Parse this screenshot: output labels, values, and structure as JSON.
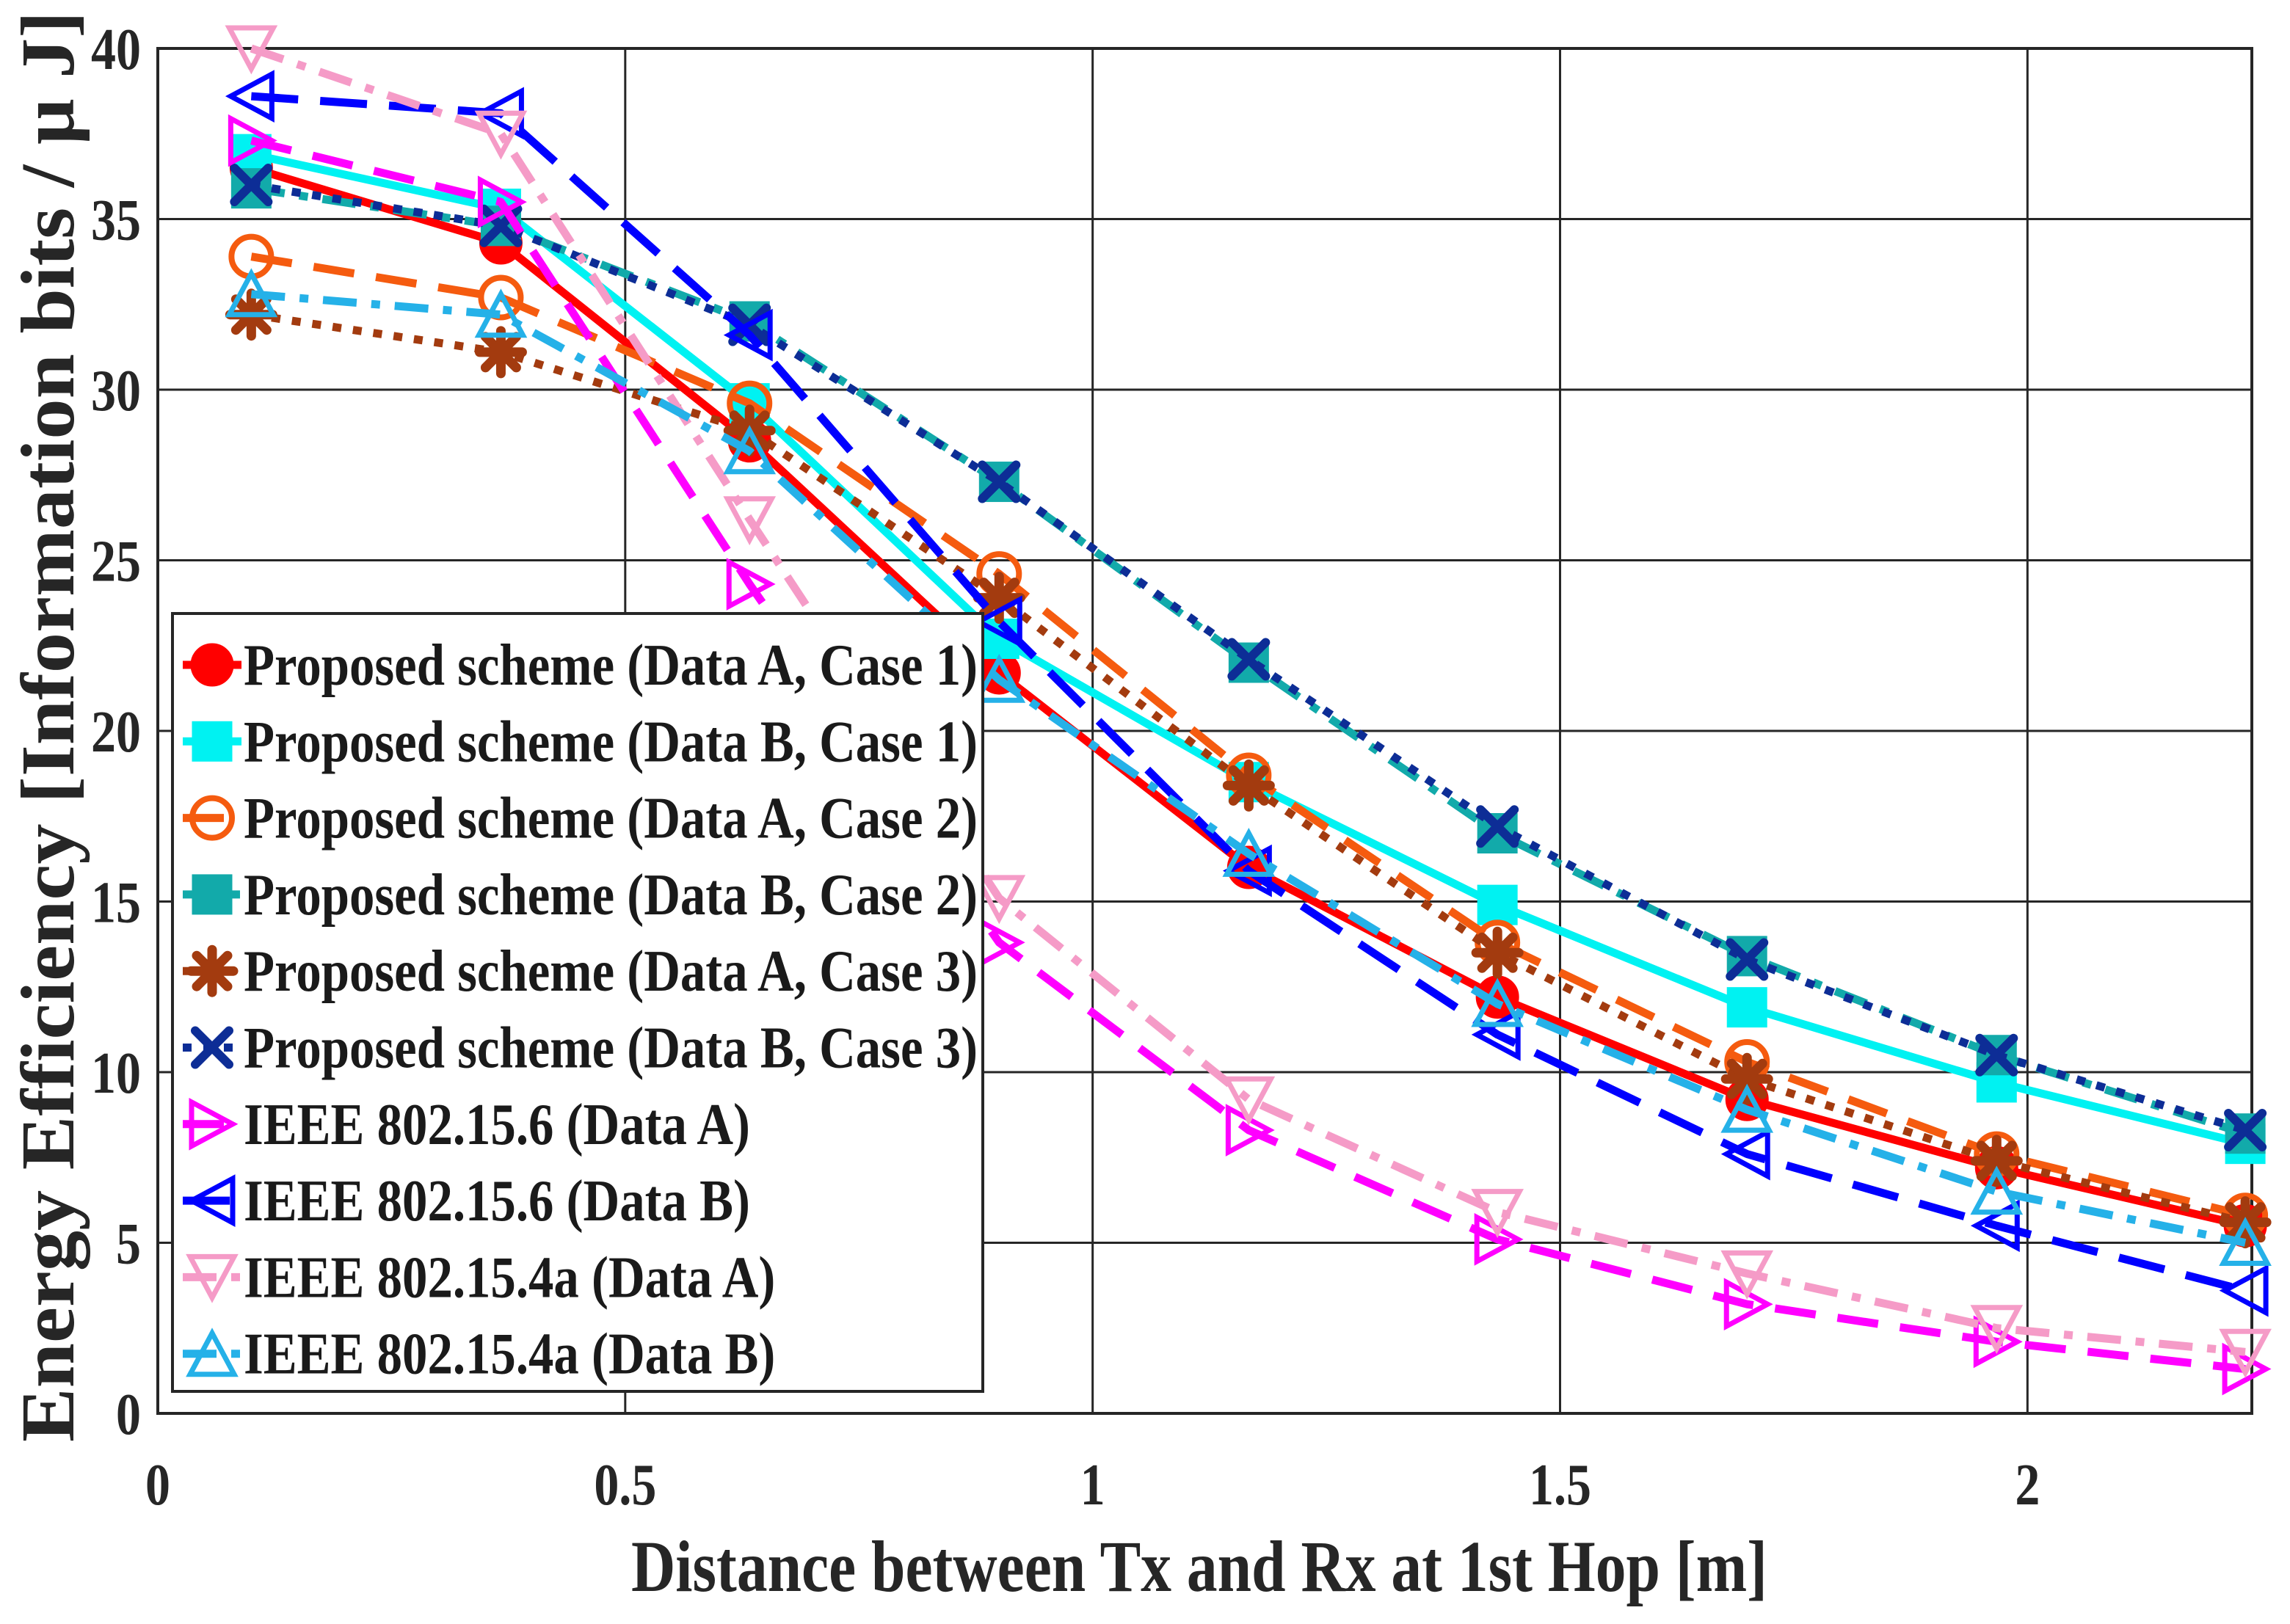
{
  "chart_data": {
    "type": "line",
    "xlabel": "Distance between Tx and Rx at 1st Hop [m]",
    "ylabel": "Energy Efficiency [Information bits / μ J]",
    "xlim": [
      0,
      2.24
    ],
    "ylim": [
      0,
      40
    ],
    "xticks": [
      0,
      0.5,
      1,
      1.5,
      2
    ],
    "xtick_labels": [
      "0",
      "0.5",
      "1",
      "1.5",
      "2"
    ],
    "yticks": [
      0,
      5,
      10,
      15,
      20,
      25,
      30,
      35,
      40
    ],
    "ytick_labels": [
      "0",
      "5",
      "10",
      "15",
      "20",
      "25",
      "30",
      "35",
      "40"
    ],
    "grid": true,
    "legend_position": "lower-left",
    "x": [
      0.1,
      0.367,
      0.633,
      0.9,
      1.167,
      1.433,
      1.7,
      1.967,
      2.233
    ],
    "series": [
      {
        "name": "Proposed scheme (Data A, Case 1)",
        "color": "#ff0000",
        "marker": "filled-circle",
        "values": [
          36.5,
          34.3,
          28.5,
          21.7,
          16.0,
          12.2,
          9.2,
          7.2,
          5.5
        ]
      },
      {
        "name": "Proposed scheme (Data B, Case 1)",
        "color": "#00f2f2",
        "marker": "filled-square",
        "values": [
          36.9,
          35.3,
          29.6,
          22.7,
          18.5,
          14.9,
          11.9,
          9.7,
          7.9
        ]
      },
      {
        "name": "Proposed scheme (Data A, Case 2)",
        "color": "#f55b0f",
        "marker": "hollow-circle",
        "values": [
          33.9,
          32.7,
          29.6,
          24.6,
          18.7,
          13.8,
          10.3,
          7.6,
          5.8
        ]
      },
      {
        "name": "Proposed scheme (Data B, Case 2)",
        "color": "#12aaaa",
        "marker": "filled-square",
        "values": [
          35.9,
          34.8,
          32.0,
          27.3,
          22.0,
          17.0,
          13.4,
          10.5,
          8.2
        ]
      },
      {
        "name": "Proposed scheme (Data A, Case 3)",
        "color": "#a33b0f",
        "marker": "asterisk",
        "values": [
          32.2,
          31.1,
          28.8,
          23.9,
          18.4,
          13.5,
          9.8,
          7.4,
          5.6
        ]
      },
      {
        "name": "Proposed scheme (Data B, Case 3)",
        "color": "#0d2d96",
        "marker": "cross",
        "values": [
          36.0,
          34.8,
          31.9,
          27.3,
          22.1,
          17.2,
          13.3,
          10.5,
          8.3
        ]
      },
      {
        "name": "IEEE 802.15.6 (Data A)",
        "color": "#ff00ff",
        "marker": "triangle-right",
        "values": [
          37.3,
          35.5,
          24.3,
          13.8,
          8.3,
          5.1,
          3.2,
          2.1,
          1.3
        ]
      },
      {
        "name": "IEEE 802.15.6 (Data B)",
        "color": "#0000ff",
        "marker": "triangle-left",
        "values": [
          38.6,
          38.1,
          31.6,
          23.2,
          15.9,
          11.1,
          7.6,
          5.5,
          3.6
        ]
      },
      {
        "name": "IEEE 802.15.4a (Data A)",
        "color": "#f59bc7",
        "marker": "triangle-down",
        "values": [
          40.0,
          37.5,
          26.2,
          15.1,
          9.2,
          5.9,
          4.1,
          2.5,
          1.8
        ]
      },
      {
        "name": "IEEE 802.15.4a (Data B)",
        "color": "#25b1e8",
        "marker": "triangle-up",
        "values": [
          32.8,
          32.2,
          28.2,
          21.5,
          16.4,
          12.0,
          8.9,
          6.5,
          5.0
        ]
      }
    ]
  }
}
